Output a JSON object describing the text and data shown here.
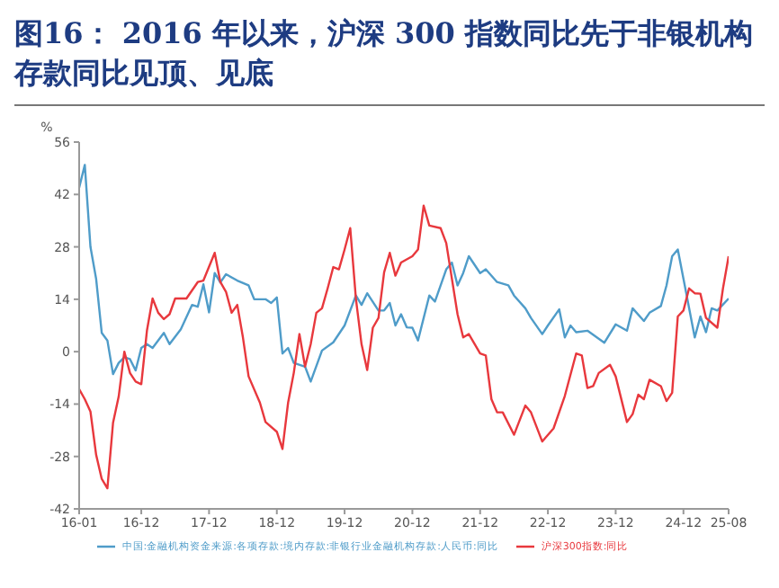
{
  "chart_data": {
    "type": "line",
    "title": "图16：  2016 年以来，沪深 300 指数同比先于非银机构存款同比见顶、见底",
    "ylabel": "%",
    "xlim": [
      "2016-01",
      "2025-08"
    ],
    "xticks": [
      {
        "value": "2016-01",
        "label": "16-01"
      },
      {
        "value": "2016-12",
        "label": "16-12"
      },
      {
        "value": "2017-12",
        "label": "17-12"
      },
      {
        "value": "2018-12",
        "label": "18-12"
      },
      {
        "value": "2019-12",
        "label": "19-12"
      },
      {
        "value": "2020-12",
        "label": "20-12"
      },
      {
        "value": "2021-12",
        "label": "21-12"
      },
      {
        "value": "2022-12",
        "label": "22-12"
      },
      {
        "value": "2023-12",
        "label": "23-12"
      },
      {
        "value": "2024-12",
        "label": "24-12"
      },
      {
        "value": "2025-08",
        "label": "25-08"
      }
    ],
    "ylim": [
      -42,
      56
    ],
    "yticks": [
      -42,
      -28,
      -14,
      0,
      14,
      28,
      42,
      56
    ],
    "grid": false,
    "legend": "bottom",
    "marker": "none",
    "line_style": "solid",
    "series": [
      {
        "name": "中国:金融机构资金来源:各项存款:境内存款:非银行业金融机构存款:人民币:同比",
        "color": "#4f9cc9",
        "x": [
          "2016-01",
          "2016-02",
          "2016-03",
          "2016-04",
          "2016-05",
          "2016-06",
          "2016-07",
          "2016-08",
          "2016-09",
          "2016-10",
          "2016-11",
          "2016-12",
          "2017-01",
          "2017-02",
          "2017-04",
          "2017-05",
          "2017-07",
          "2017-09",
          "2017-10",
          "2017-11",
          "2017-12",
          "2018-01",
          "2018-02",
          "2018-03",
          "2018-05",
          "2018-07",
          "2018-08",
          "2018-10",
          "2018-11",
          "2018-12",
          "2019-01",
          "2019-02",
          "2019-03",
          "2019-05",
          "2019-06",
          "2019-08",
          "2019-10",
          "2019-12",
          "2020-02",
          "2020-03",
          "2020-04",
          "2020-06",
          "2020-07",
          "2020-08",
          "2020-09",
          "2020-10",
          "2020-11",
          "2020-12",
          "2021-01",
          "2021-03",
          "2021-04",
          "2021-06",
          "2021-07",
          "2021-08",
          "2021-09",
          "2021-10",
          "2021-12",
          "2022-01",
          "2022-03",
          "2022-05",
          "2022-06",
          "2022-08",
          "2022-09",
          "2022-11",
          "2022-12",
          "2023-02",
          "2023-03",
          "2023-04",
          "2023-05",
          "2023-07",
          "2023-10",
          "2023-12",
          "2024-02",
          "2024-03",
          "2024-05",
          "2024-06",
          "2024-08",
          "2024-09",
          "2024-10",
          "2024-11",
          "2024-12",
          "2025-02",
          "2025-03",
          "2025-04",
          "2025-05",
          "2025-06",
          "2025-08"
        ],
        "values": [
          43.8,
          49.9,
          28,
          19.5,
          5,
          3,
          -6,
          -3,
          -1.5,
          -2,
          -5,
          1,
          2,
          1,
          5,
          2,
          6,
          12.5,
          12,
          18,
          10.5,
          21,
          18.5,
          20.7,
          19,
          17.7,
          14,
          14,
          13,
          14.5,
          -0.5,
          1,
          -3,
          -4,
          -8,
          0.3,
          2.5,
          7,
          15,
          12.5,
          15.6,
          11,
          11,
          13,
          7,
          10,
          6.5,
          6.4,
          3,
          15,
          13.4,
          22,
          23.8,
          17.7,
          21,
          25.5,
          21,
          22,
          18.6,
          17.7,
          15,
          11.6,
          9,
          4.7,
          7,
          11.3,
          3.8,
          7,
          5.2,
          5.6,
          2.4,
          7.3,
          5.6,
          11.6,
          8.2,
          10.4,
          12.2,
          17.7,
          25.5,
          27.3,
          19.5,
          3.8,
          9.4,
          5.2,
          11.6,
          11,
          14.2
        ]
      },
      {
        "name": "沪深300指数:同比",
        "color": "#e8383d",
        "x": [
          "2016-01",
          "2016-02",
          "2016-03",
          "2016-04",
          "2016-05",
          "2016-06",
          "2016-07",
          "2016-08",
          "2016-09",
          "2016-10",
          "2016-11",
          "2016-12",
          "2017-01",
          "2017-02",
          "2017-03",
          "2017-04",
          "2017-05",
          "2017-06",
          "2017-07",
          "2017-08",
          "2017-10",
          "2017-11",
          "2018-01",
          "2018-02",
          "2018-03",
          "2018-04",
          "2018-05",
          "2018-06",
          "2018-07",
          "2018-09",
          "2018-10",
          "2018-12",
          "2019-01",
          "2019-02",
          "2019-03",
          "2019-04",
          "2019-05",
          "2019-06",
          "2019-07",
          "2019-08",
          "2019-09",
          "2019-10",
          "2019-11",
          "2019-12",
          "2020-01",
          "2020-02",
          "2020-03",
          "2020-04",
          "2020-05",
          "2020-06",
          "2020-07",
          "2020-08",
          "2020-09",
          "2020-10",
          "2020-12",
          "2021-01",
          "2021-02",
          "2021-03",
          "2021-05",
          "2021-06",
          "2021-08",
          "2021-09",
          "2021-10",
          "2021-12",
          "2022-01",
          "2022-02",
          "2022-03",
          "2022-04",
          "2022-06",
          "2022-08",
          "2022-09",
          "2022-11",
          "2023-01",
          "2023-03",
          "2023-05",
          "2023-06",
          "2023-07",
          "2023-08",
          "2023-09",
          "2023-11",
          "2023-12",
          "2024-02",
          "2024-03",
          "2024-04",
          "2024-05",
          "2024-06",
          "2024-08",
          "2024-09",
          "2024-10",
          "2024-11",
          "2024-12",
          "2025-01",
          "2025-02",
          "2025-03",
          "2025-04",
          "2025-06",
          "2025-07",
          "2025-08"
        ],
        "values": [
          -10,
          -12.7,
          -16,
          -27.5,
          -34,
          -36.5,
          -19,
          -12,
          0,
          -5.7,
          -8,
          -8.7,
          5.6,
          14.2,
          10.4,
          8.7,
          10,
          14.2,
          14.2,
          14.2,
          18.6,
          19,
          26.4,
          18.6,
          16,
          10.4,
          12.5,
          3.8,
          -6.6,
          -13.6,
          -18.8,
          -21.4,
          -26,
          -13.6,
          -5.7,
          4.7,
          -4,
          2,
          10.4,
          11.6,
          16.9,
          22.6,
          22,
          27.3,
          33,
          14.2,
          2,
          -4.9,
          6.4,
          9,
          21.2,
          26.4,
          20.3,
          23.8,
          25.5,
          27.3,
          39,
          33.7,
          33,
          29,
          10,
          3.8,
          4.7,
          -0.5,
          -1,
          -12.7,
          -16.2,
          -16.2,
          -22.2,
          -14.4,
          -16.2,
          -24,
          -20.5,
          -11.8,
          -0.5,
          -1,
          -9.7,
          -9.2,
          -5.7,
          -3.5,
          -6.6,
          -18.8,
          -16.7,
          -11.5,
          -12.7,
          -7.5,
          -9.2,
          -13.2,
          -11,
          9.4,
          11,
          16.9,
          15.6,
          15.5,
          9,
          6.4,
          16.9,
          25.5
        ]
      }
    ]
  }
}
